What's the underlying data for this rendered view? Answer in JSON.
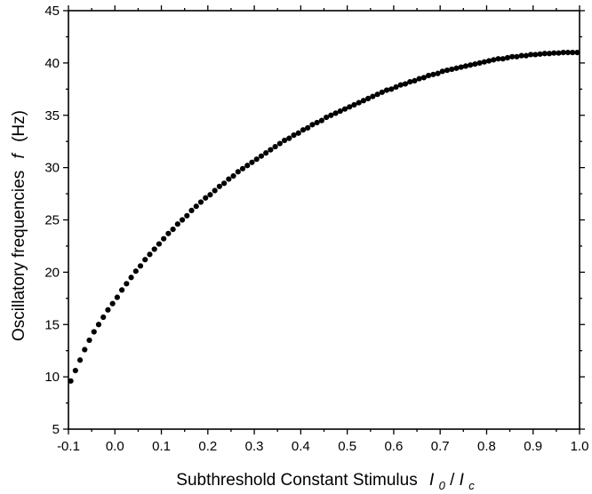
{
  "chart_data": {
    "type": "scatter",
    "xlabel_main": "Subthreshold Constant Stimulus",
    "xlabel_var": {
      "I1": "I",
      "sub1": "0",
      "slash": "/",
      "I2": "I",
      "sub2": "c"
    },
    "ylabel_main": "Oscillatory frequencies",
    "ylabel_var": "f",
    "ylabel_unit": "(Hz)",
    "xlim": [
      -0.1,
      1.0
    ],
    "ylim": [
      5,
      45
    ],
    "xticks": [
      {
        "v": -0.1,
        "label": "-0.1"
      },
      {
        "v": 0.0,
        "label": "0.0"
      },
      {
        "v": 0.1,
        "label": "0.1"
      },
      {
        "v": 0.2,
        "label": "0.2"
      },
      {
        "v": 0.3,
        "label": "0.3"
      },
      {
        "v": 0.4,
        "label": "0.4"
      },
      {
        "v": 0.5,
        "label": "0.5"
      },
      {
        "v": 0.6,
        "label": "0.6"
      },
      {
        "v": 0.7,
        "label": "0.7"
      },
      {
        "v": 0.8,
        "label": "0.8"
      },
      {
        "v": 0.9,
        "label": "0.9"
      },
      {
        "v": 1.0,
        "label": "1.0"
      }
    ],
    "yticks": [
      {
        "v": 5,
        "label": "5"
      },
      {
        "v": 10,
        "label": "10"
      },
      {
        "v": 15,
        "label": "15"
      },
      {
        "v": 20,
        "label": "20"
      },
      {
        "v": 25,
        "label": "25"
      },
      {
        "v": 30,
        "label": "30"
      },
      {
        "v": 35,
        "label": "35"
      },
      {
        "v": 40,
        "label": "40"
      },
      {
        "v": 45,
        "label": "45"
      }
    ],
    "grid": false,
    "marker_color": "#000000",
    "series": [
      {
        "points": [
          [
            -0.095,
            9.6
          ],
          [
            -0.085,
            10.6
          ],
          [
            -0.075,
            11.6
          ],
          [
            -0.065,
            12.6
          ],
          [
            -0.055,
            13.5
          ],
          [
            -0.045,
            14.3
          ],
          [
            -0.035,
            15.0
          ],
          [
            -0.025,
            15.7
          ],
          [
            -0.015,
            16.4
          ],
          [
            -0.005,
            17.0
          ],
          [
            0.005,
            17.6
          ],
          [
            0.015,
            18.3
          ],
          [
            0.025,
            18.9
          ],
          [
            0.035,
            19.5
          ],
          [
            0.045,
            20.1
          ],
          [
            0.055,
            20.6
          ],
          [
            0.065,
            21.2
          ],
          [
            0.075,
            21.7
          ],
          [
            0.085,
            22.2
          ],
          [
            0.095,
            22.7
          ],
          [
            0.105,
            23.2
          ],
          [
            0.115,
            23.7
          ],
          [
            0.125,
            24.1
          ],
          [
            0.135,
            24.6
          ],
          [
            0.145,
            25.0
          ],
          [
            0.155,
            25.4
          ],
          [
            0.165,
            25.9
          ],
          [
            0.175,
            26.3
          ],
          [
            0.185,
            26.7
          ],
          [
            0.195,
            27.1
          ],
          [
            0.205,
            27.4
          ],
          [
            0.215,
            27.8
          ],
          [
            0.225,
            28.2
          ],
          [
            0.235,
            28.5
          ],
          [
            0.245,
            28.9
          ],
          [
            0.255,
            29.2
          ],
          [
            0.265,
            29.6
          ],
          [
            0.275,
            29.9
          ],
          [
            0.285,
            30.2
          ],
          [
            0.295,
            30.5
          ],
          [
            0.305,
            30.8
          ],
          [
            0.315,
            31.1
          ],
          [
            0.325,
            31.4
          ],
          [
            0.335,
            31.7
          ],
          [
            0.345,
            32.0
          ],
          [
            0.355,
            32.3
          ],
          [
            0.365,
            32.6
          ],
          [
            0.375,
            32.8
          ],
          [
            0.385,
            33.1
          ],
          [
            0.395,
            33.3
          ],
          [
            0.405,
            33.6
          ],
          [
            0.415,
            33.8
          ],
          [
            0.425,
            34.1
          ],
          [
            0.435,
            34.3
          ],
          [
            0.445,
            34.5
          ],
          [
            0.455,
            34.8
          ],
          [
            0.465,
            35.0
          ],
          [
            0.475,
            35.2
          ],
          [
            0.485,
            35.4
          ],
          [
            0.495,
            35.6
          ],
          [
            0.505,
            35.8
          ],
          [
            0.515,
            36.0
          ],
          [
            0.525,
            36.2
          ],
          [
            0.535,
            36.4
          ],
          [
            0.545,
            36.6
          ],
          [
            0.555,
            36.8
          ],
          [
            0.565,
            37.0
          ],
          [
            0.575,
            37.2
          ],
          [
            0.585,
            37.4
          ],
          [
            0.595,
            37.5
          ],
          [
            0.605,
            37.7
          ],
          [
            0.615,
            37.9
          ],
          [
            0.625,
            38.0
          ],
          [
            0.635,
            38.2
          ],
          [
            0.645,
            38.3
          ],
          [
            0.655,
            38.5
          ],
          [
            0.665,
            38.6
          ],
          [
            0.675,
            38.8
          ],
          [
            0.685,
            38.9
          ],
          [
            0.695,
            39.0
          ],
          [
            0.705,
            39.2
          ],
          [
            0.715,
            39.3
          ],
          [
            0.725,
            39.4
          ],
          [
            0.735,
            39.5
          ],
          [
            0.745,
            39.6
          ],
          [
            0.755,
            39.7
          ],
          [
            0.765,
            39.8
          ],
          [
            0.775,
            39.9
          ],
          [
            0.785,
            40.0
          ],
          [
            0.795,
            40.1
          ],
          [
            0.805,
            40.2
          ],
          [
            0.815,
            40.3
          ],
          [
            0.825,
            40.4
          ],
          [
            0.835,
            40.4
          ],
          [
            0.845,
            40.5
          ],
          [
            0.855,
            40.6
          ],
          [
            0.865,
            40.6
          ],
          [
            0.875,
            40.7
          ],
          [
            0.885,
            40.7
          ],
          [
            0.895,
            40.8
          ],
          [
            0.905,
            40.8
          ],
          [
            0.915,
            40.85
          ],
          [
            0.925,
            40.9
          ],
          [
            0.935,
            40.9
          ],
          [
            0.945,
            40.95
          ],
          [
            0.955,
            40.95
          ],
          [
            0.965,
            41.0
          ],
          [
            0.975,
            41.0
          ],
          [
            0.985,
            41.0
          ],
          [
            0.995,
            41.0
          ]
        ]
      }
    ]
  }
}
